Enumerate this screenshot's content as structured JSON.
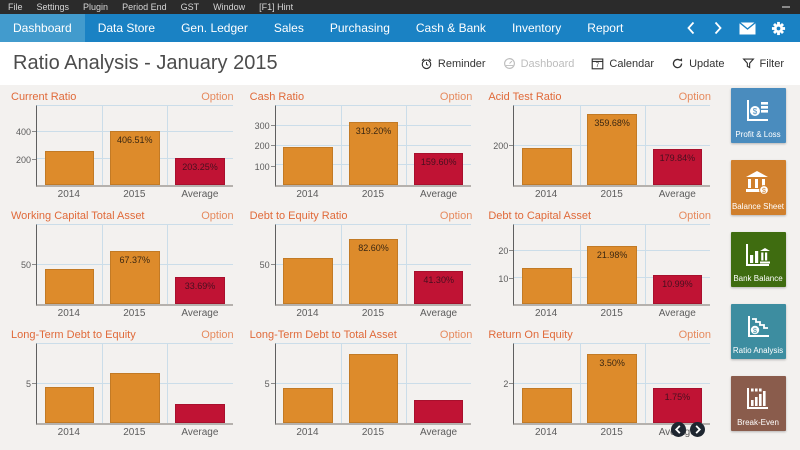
{
  "titlebar": {
    "menu_items": [
      "File",
      "Settings",
      "Plugin",
      "Period End",
      "GST",
      "Window",
      "[F1] Hint"
    ]
  },
  "navbar": {
    "tabs": [
      {
        "label": "Dashboard",
        "active": true
      },
      {
        "label": "Data Store",
        "active": false
      },
      {
        "label": "Gen. Ledger",
        "active": false
      },
      {
        "label": "Sales",
        "active": false
      },
      {
        "label": "Purchasing",
        "active": false
      },
      {
        "label": "Cash & Bank",
        "active": false
      },
      {
        "label": "Inventory",
        "active": false
      },
      {
        "label": "Report",
        "active": false
      }
    ],
    "icons": [
      "chevron-left-icon",
      "chevron-right-icon",
      "mail-icon",
      "gear-icon"
    ],
    "bg_color": "#1a82c4",
    "active_tab_color": "#429bcd"
  },
  "header": {
    "title": "Ratio Analysis - January 2015",
    "actions": [
      {
        "label": "Reminder",
        "icon": "alarm-clock-icon",
        "enabled": true
      },
      {
        "label": "Dashboard",
        "icon": "gauge-icon",
        "enabled": false
      },
      {
        "label": "Calendar",
        "icon": "calendar-icon",
        "enabled": true
      },
      {
        "label": "Update",
        "icon": "refresh-icon",
        "enabled": true
      },
      {
        "label": "Filter",
        "icon": "filter-icon",
        "enabled": true
      }
    ]
  },
  "charts_common": {
    "option_label": "Option",
    "bar_color_year": "#dd8b2b",
    "bar_color_average": "#c01334",
    "label_color_on_orange": "#3a2712",
    "label_color_on_red": "#47101f"
  },
  "chart_data": [
    {
      "type": "bar",
      "title": "Current Ratio",
      "categories": [
        "2014",
        "2015",
        "Average"
      ],
      "values": [
        260,
        406.51,
        203.25
      ],
      "bar_labels": [
        "",
        "406.51%",
        "203.25%"
      ],
      "yticks": [
        200,
        400
      ],
      "ylim": [
        0,
        600
      ]
    },
    {
      "type": "bar",
      "title": "Cash Ratio",
      "categories": [
        "2014",
        "2015",
        "Average"
      ],
      "values": [
        195,
        319.2,
        159.6
      ],
      "bar_labels": [
        "",
        "319.20%",
        "159.60%"
      ],
      "yticks": [
        100,
        200,
        300
      ],
      "ylim": [
        0,
        400
      ]
    },
    {
      "type": "bar",
      "title": "Acid Test Ratio",
      "categories": [
        "2014",
        "2015",
        "Average"
      ],
      "values": [
        185,
        359.68,
        179.84
      ],
      "bar_labels": [
        "",
        "359.68%",
        "179.84%"
      ],
      "yticks": [
        200
      ],
      "ylim": [
        0,
        400
      ]
    },
    {
      "type": "bar",
      "title": "Working Capital Total Asset",
      "categories": [
        "2014",
        "2015",
        "Average"
      ],
      "values": [
        44,
        67.37,
        33.69
      ],
      "bar_labels": [
        "",
        "67.37%",
        "33.69%"
      ],
      "yticks": [
        50
      ],
      "ylim": [
        0,
        100
      ]
    },
    {
      "type": "bar",
      "title": "Debt to Equity Ratio",
      "categories": [
        "2014",
        "2015",
        "Average"
      ],
      "values": [
        58,
        82.6,
        41.3
      ],
      "bar_labels": [
        "",
        "82.60%",
        "41.30%"
      ],
      "yticks": [
        50
      ],
      "ylim": [
        0,
        100
      ]
    },
    {
      "type": "bar",
      "title": "Debt to Capital Asset",
      "categories": [
        "2014",
        "2015",
        "Average"
      ],
      "values": [
        13.7,
        21.98,
        10.99
      ],
      "bar_labels": [
        "",
        "21.98%",
        "10.99%"
      ],
      "yticks": [
        10,
        20
      ],
      "ylim": [
        0,
        30
      ]
    },
    {
      "type": "bar",
      "title": "Long-Term Debt to Equity",
      "categories": [
        "2014",
        "2015",
        "Average"
      ],
      "values": [
        4.5,
        6.3,
        2.4
      ],
      "bar_labels": [
        "",
        "",
        ""
      ],
      "yticks": [
        5
      ],
      "ylim": [
        0,
        10
      ]
    },
    {
      "type": "bar",
      "title": "Long-Term Debt to Total Asset",
      "categories": [
        "2014",
        "2015",
        "Average"
      ],
      "values": [
        4.4,
        8.7,
        2.9
      ],
      "bar_labels": [
        "",
        "",
        ""
      ],
      "yticks": [
        5
      ],
      "ylim": [
        0,
        10
      ]
    },
    {
      "type": "bar",
      "title": "Return On Equity",
      "categories": [
        "2014",
        "2015",
        "Average"
      ],
      "values": [
        1.78,
        3.5,
        1.75
      ],
      "bar_labels": [
        "",
        "3.50%",
        "1.75%"
      ],
      "yticks": [
        2
      ],
      "ylim": [
        0,
        4
      ]
    }
  ],
  "sidebar": {
    "buttons": [
      {
        "label": "Profit & Loss",
        "color": "#4a8cbe",
        "icon": "profit-loss-icon"
      },
      {
        "label": "Balance Sheet",
        "color": "#d07f2c",
        "icon": "balance-sheet-icon"
      },
      {
        "label": "Bank Balance",
        "color": "#3f6c10",
        "icon": "bank-balance-icon"
      },
      {
        "label": "Ratio Analysis",
        "color": "#3d8da0",
        "icon": "ratio-analysis-icon"
      },
      {
        "label": "Break-Even",
        "color": "#8a5c4c",
        "icon": "break-even-icon"
      }
    ]
  },
  "pager": {
    "prev_icon": "chevron-left-icon",
    "next_icon": "chevron-right-icon"
  }
}
